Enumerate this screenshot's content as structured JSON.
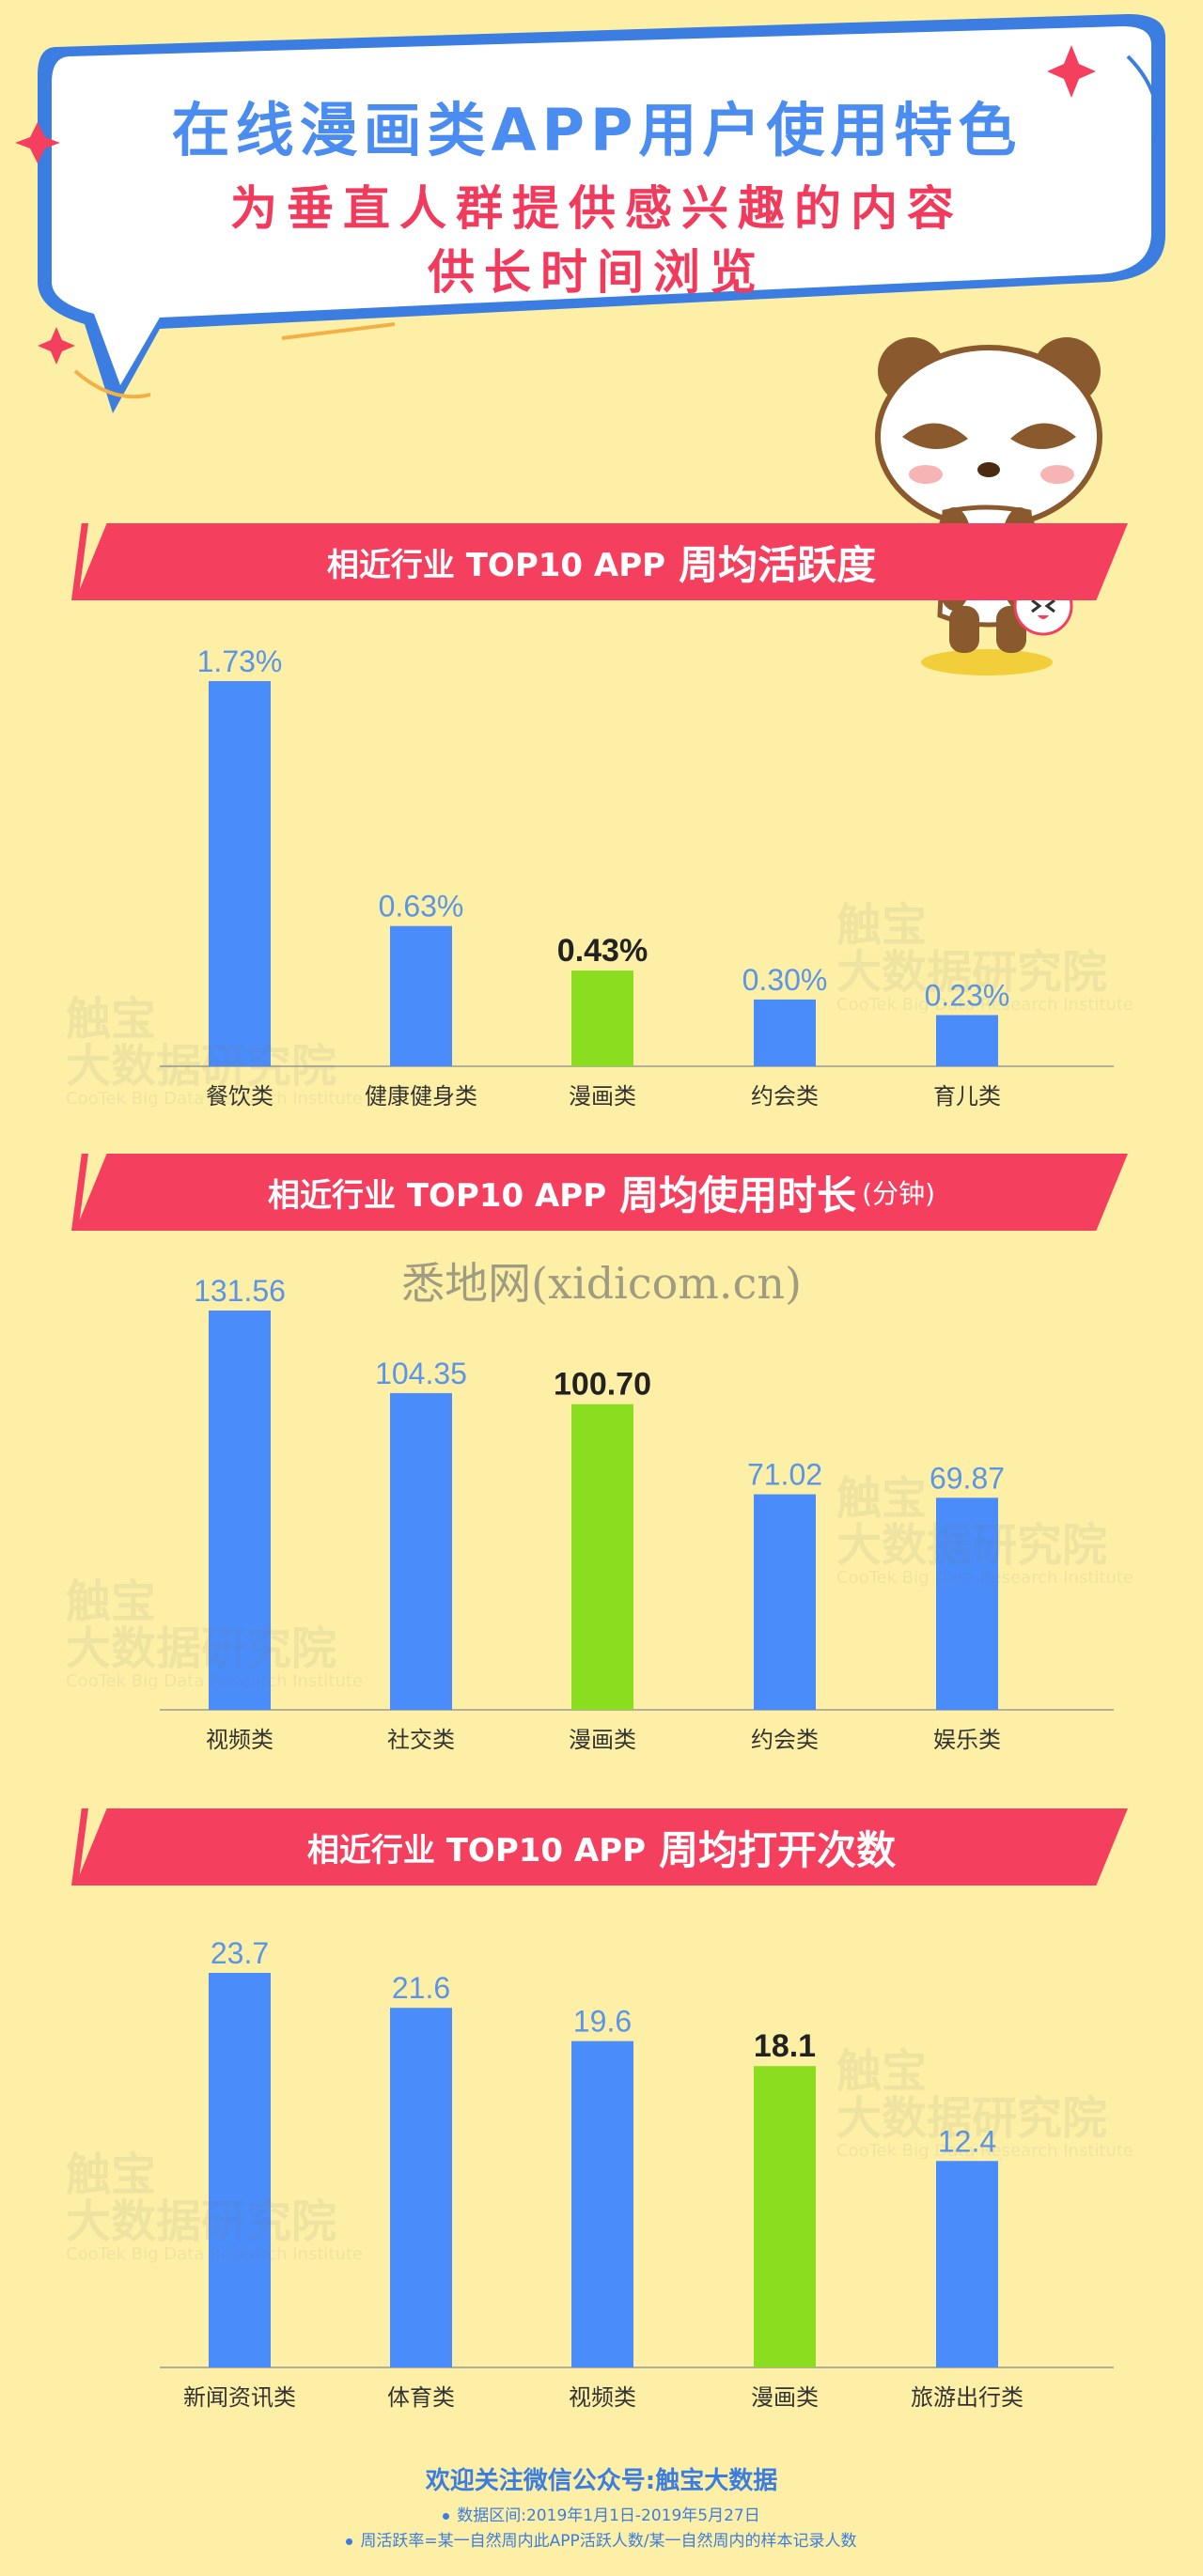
{
  "header": {
    "title": "在线漫画类APP用户使用特色",
    "subtitle_line1": "为垂直人群提供感兴趣的内容",
    "subtitle_line2": "供长时间浏览"
  },
  "colors": {
    "background": "#fdf0a6",
    "banner": "#f43f5e",
    "bar_default": "#4a8cfa",
    "bar_highlight": "#8bdd1f",
    "value_default": "#5a95e8",
    "value_highlight": "#222222",
    "title_blue": "#4a8cf0",
    "subtitle_red": "#f23a5c"
  },
  "watermark": {
    "brand_cn_line1": "触宝",
    "brand_cn_line2": "大数据研究院",
    "brand_en": "CooTek Big Data Research Institute",
    "site": "悉地网(xidicom.cn)"
  },
  "sections": [
    {
      "banner_main": "相近行业 TOP10 APP",
      "banner_emph": "周均活跃度",
      "banner_unit": ""
    },
    {
      "banner_main": "相近行业 TOP10 APP",
      "banner_emph": "周均使用时长",
      "banner_unit": "(分钟)"
    },
    {
      "banner_main": "相近行业 TOP10 APP",
      "banner_emph": "周均打开次数",
      "banner_unit": ""
    }
  ],
  "chart_data": [
    {
      "type": "bar",
      "categories": [
        "餐饮类",
        "健康健身类",
        "漫画类",
        "约会类",
        "育儿类"
      ],
      "values": [
        1.73,
        0.63,
        0.43,
        0.3,
        0.23
      ],
      "value_labels": [
        "1.73%",
        "0.63%",
        "0.43%",
        "0.30%",
        "0.23%"
      ],
      "highlight_index": 2,
      "ylim": [
        0,
        1.73
      ]
    },
    {
      "type": "bar",
      "categories": [
        "视频类",
        "社交类",
        "漫画类",
        "约会类",
        "娱乐类"
      ],
      "values": [
        131.56,
        104.35,
        100.7,
        71.02,
        69.87
      ],
      "value_labels": [
        "131.56",
        "104.35",
        "100.70",
        "71.02",
        "69.87"
      ],
      "highlight_index": 2,
      "ylim": [
        0,
        131.56
      ]
    },
    {
      "type": "bar",
      "categories": [
        "新闻资讯类",
        "体育类",
        "视频类",
        "漫画类",
        "旅游出行类"
      ],
      "values": [
        23.7,
        21.6,
        19.6,
        18.1,
        12.4
      ],
      "value_labels": [
        "23.7",
        "21.6",
        "19.6",
        "18.1",
        "12.4"
      ],
      "highlight_index": 3,
      "ylim": [
        0,
        23.7
      ]
    }
  ],
  "footer": {
    "title": "欢迎关注微信公众号:触宝大数据",
    "note1": "数据区间:2019年1月1日-2019年5月27日",
    "note2": "周活跃率=某一自然周内此APP活跃人数/某一自然周内的样本记录人数"
  }
}
